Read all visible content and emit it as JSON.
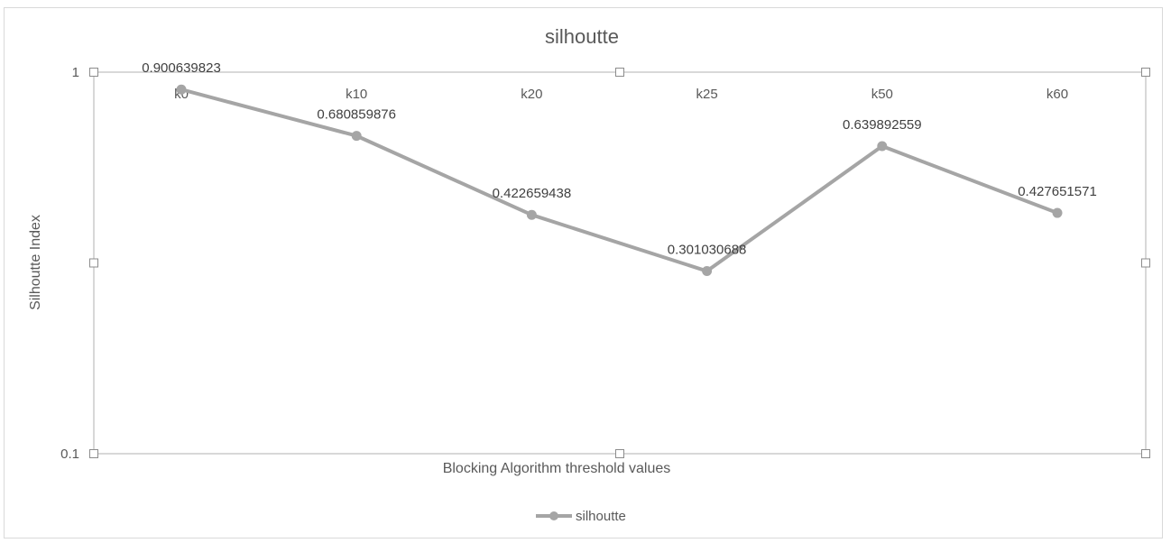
{
  "chart_data": {
    "type": "line",
    "title": "silhoutte",
    "xlabel": "Blocking Algorithm threshold values",
    "ylabel": "Silhoutte Index",
    "categories": [
      "k0",
      "k10",
      "k20",
      "k25",
      "k50",
      "k60"
    ],
    "series": [
      {
        "name": "silhoutte",
        "values": [
          0.900639823,
          0.680859876,
          0.422659438,
          0.301030688,
          0.639892559,
          0.427651571
        ],
        "labels": [
          "0.900639823",
          "0.680859876",
          "0.422659438",
          "0.301030688",
          "0.639892559",
          "0.427651571"
        ]
      }
    ],
    "y_scale": "log",
    "ylim": [
      0.1,
      1
    ],
    "y_ticks": [
      0.1,
      1
    ],
    "y_tick_labels": [
      "0.1",
      "1"
    ],
    "legend_position": "bottom",
    "grid": false,
    "colors": {
      "series": "#a5a5a5",
      "text": "#595959",
      "plot_border": "#bfbfbf"
    }
  }
}
